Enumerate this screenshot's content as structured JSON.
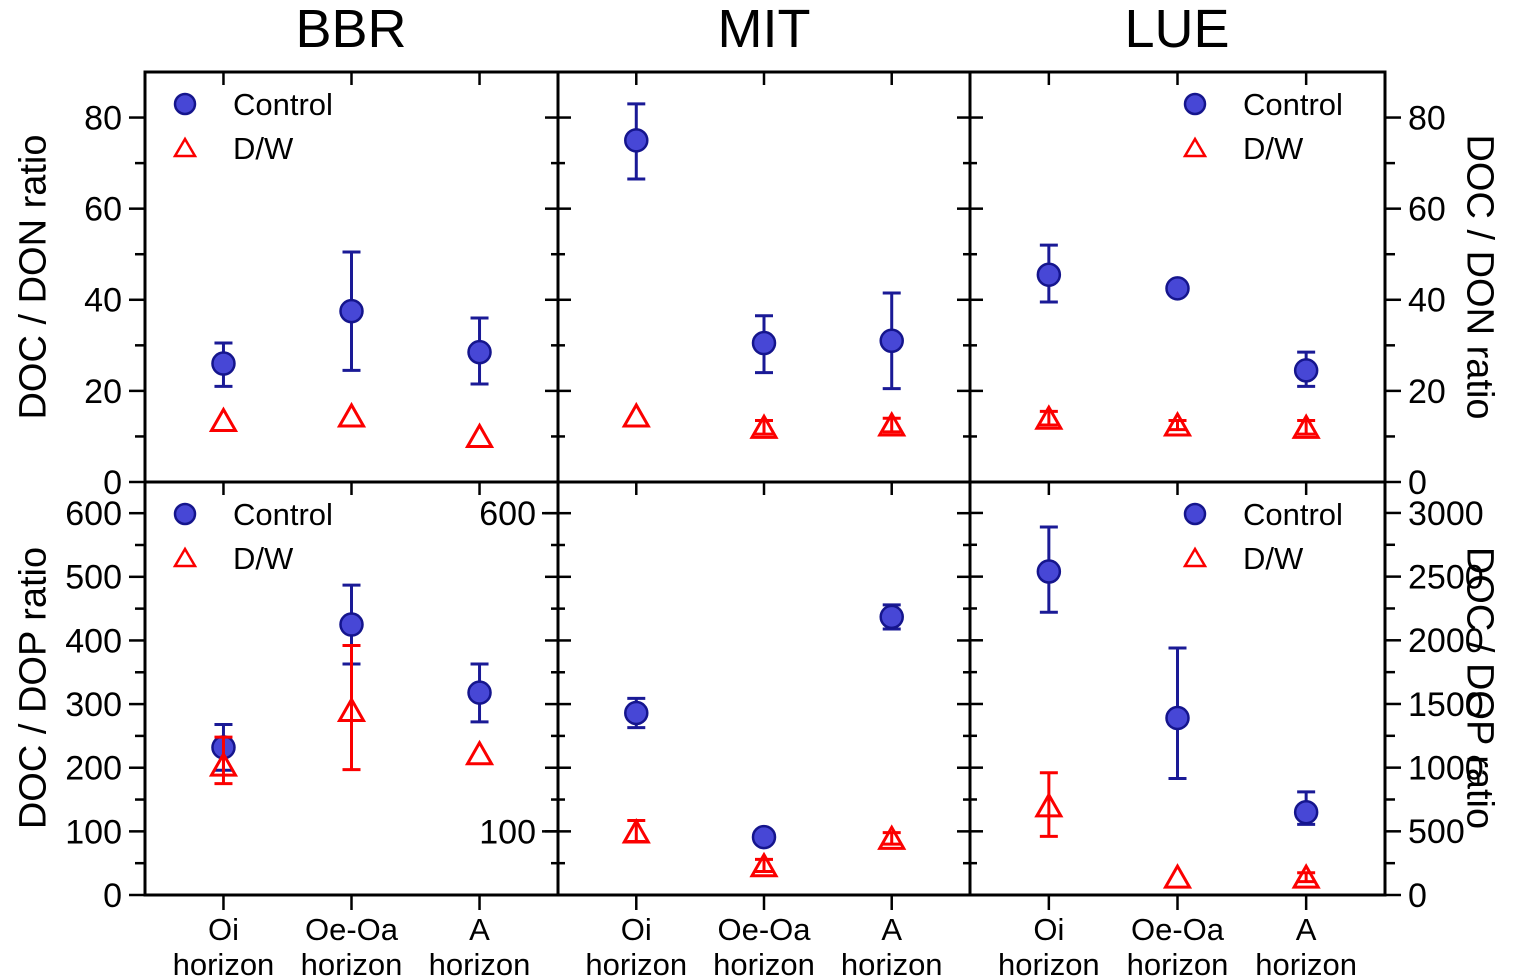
{
  "figure": {
    "panel_titles": [
      "BBR",
      "MIT",
      "LUE"
    ],
    "axis_titles": {
      "left_top": "DOC / DON ratio",
      "left_bottom": "DOC / DOP ratio",
      "right_top": "DOC / DON ratio",
      "right_bottom": "DOC / DOP ratio"
    },
    "legend": {
      "control": "Control",
      "dw": "D/W"
    },
    "categories_lines": [
      [
        "Oi",
        "horizon"
      ],
      [
        "Oe-Oa",
        "horizon"
      ],
      [
        "A",
        "horizon"
      ]
    ]
  },
  "colors": {
    "control_fill": "#4747d6",
    "control_edge": "#15158d",
    "control_error": "#1a1a96",
    "dw_color": "#fb0000",
    "axis": "#000000",
    "text": "#000000",
    "background": "#ffffff"
  },
  "chart_data": [
    {
      "id": "bbr-don",
      "site": "BBR",
      "measure": "DOC / DON ratio",
      "type": "scatter",
      "row": 0,
      "col": 0,
      "categories": [
        "Oi horizon",
        "Oe-Oa horizon",
        "A horizon"
      ],
      "ylim": [
        0,
        90
      ],
      "yticks_major": [
        0,
        20,
        40,
        60,
        80
      ],
      "yticks_minor": [
        10,
        30,
        50,
        70
      ],
      "ylabel_side": "left",
      "legend_pos": "top-left",
      "series": [
        {
          "name": "Control",
          "marker": "circle",
          "values": [
            26,
            37.5,
            28.5
          ],
          "err_upper": [
            30.5,
            50.5,
            36
          ],
          "err_lower": [
            21,
            24.5,
            21.5
          ]
        },
        {
          "name": "D/W",
          "marker": "triangle",
          "values": [
            13.5,
            14.5,
            10
          ],
          "err_upper": [
            null,
            null,
            null
          ],
          "err_lower": [
            null,
            null,
            null
          ]
        }
      ]
    },
    {
      "id": "mit-don",
      "site": "MIT",
      "measure": "DOC / DON ratio",
      "type": "scatter",
      "row": 0,
      "col": 1,
      "categories": [
        "Oi horizon",
        "Oe-Oa horizon",
        "A horizon"
      ],
      "ylim": [
        0,
        90
      ],
      "yticks_major": [
        0,
        20,
        40,
        60,
        80
      ],
      "yticks_minor": [
        10,
        30,
        50,
        70
      ],
      "ylabel_side": "none",
      "legend_pos": null,
      "series": [
        {
          "name": "Control",
          "marker": "circle",
          "values": [
            75,
            30.5,
            31
          ],
          "err_upper": [
            83,
            36.5,
            41.5
          ],
          "err_lower": [
            66.5,
            24,
            20.5
          ]
        },
        {
          "name": "D/W",
          "marker": "triangle",
          "values": [
            14.5,
            12,
            12.5
          ],
          "err_upper": [
            null,
            13.5,
            14
          ],
          "err_lower": [
            null,
            10.5,
            11
          ]
        }
      ]
    },
    {
      "id": "lue-don",
      "site": "LUE",
      "measure": "DOC / DON ratio",
      "type": "scatter",
      "row": 0,
      "col": 2,
      "categories": [
        "Oi horizon",
        "Oe-Oa horizon",
        "A horizon"
      ],
      "ylim": [
        0,
        90
      ],
      "yticks_major": [
        0,
        20,
        40,
        60,
        80
      ],
      "yticks_minor": [
        10,
        30,
        50,
        70
      ],
      "ylabel_side": "right",
      "legend_pos": "top-right",
      "series": [
        {
          "name": "Control",
          "marker": "circle",
          "values": [
            45.5,
            42.5,
            24.5
          ],
          "err_upper": [
            52,
            43.5,
            28.5
          ],
          "err_lower": [
            39.5,
            41.5,
            21
          ]
        },
        {
          "name": "D/W",
          "marker": "triangle",
          "values": [
            14,
            12.5,
            12
          ],
          "err_upper": [
            15.5,
            13.5,
            13.5
          ],
          "err_lower": [
            12.5,
            11.5,
            10.5
          ]
        }
      ]
    },
    {
      "id": "bbr-dop",
      "site": "BBR",
      "measure": "DOC / DOP ratio",
      "type": "scatter",
      "row": 1,
      "col": 0,
      "categories": [
        "Oi horizon",
        "Oe-Oa horizon",
        "A horizon"
      ],
      "ylim": [
        0,
        649
      ],
      "yticks_major": [
        0,
        100,
        200,
        300,
        400,
        500,
        600
      ],
      "yticks_minor": [
        50,
        150,
        250,
        350,
        450,
        550
      ],
      "ylabel_side": "left",
      "legend_pos": "top-left",
      "series": [
        {
          "name": "Control",
          "marker": "circle",
          "values": [
            232,
            425,
            318
          ],
          "err_upper": [
            268,
            487,
            363
          ],
          "err_lower": [
            196,
            363,
            272
          ]
        },
        {
          "name": "D/W",
          "marker": "triangle",
          "values": [
            204,
            290,
            222
          ],
          "err_upper": [
            248,
            392,
            null
          ],
          "err_lower": [
            175,
            197,
            null
          ]
        }
      ]
    },
    {
      "id": "mit-dop",
      "site": "MIT",
      "measure": "DOC / DOP ratio",
      "type": "scatter",
      "row": 1,
      "col": 1,
      "categories": [
        "Oi horizon",
        "Oe-Oa horizon",
        "A horizon"
      ],
      "ylim": [
        0,
        649
      ],
      "yticks_major": [
        0,
        100,
        200,
        300,
        400,
        500,
        600
      ],
      "yticks_minor": [
        50,
        150,
        250,
        350,
        450,
        550
      ],
      "ylabel_side": "none",
      "partial_left_labels": [
        {
          "value": 600,
          "label": "600"
        },
        {
          "value": 100,
          "label": "100"
        }
      ],
      "legend_pos": null,
      "series": [
        {
          "name": "Control",
          "marker": "circle",
          "values": [
            286,
            91,
            437
          ],
          "err_upper": [
            309,
            null,
            456
          ],
          "err_lower": [
            263,
            null,
            418
          ]
        },
        {
          "name": "D/W",
          "marker": "triangle",
          "values": [
            99,
            46,
            89
          ],
          "err_upper": [
            117,
            56,
            98
          ],
          "err_lower": [
            84,
            37,
            80
          ]
        }
      ]
    },
    {
      "id": "lue-dop",
      "site": "LUE",
      "measure": "DOC / DOP ratio",
      "type": "scatter",
      "row": 1,
      "col": 2,
      "categories": [
        "Oi horizon",
        "Oe-Oa horizon",
        "A horizon"
      ],
      "ylim": [
        0,
        3243
      ],
      "yticks_major": [
        0,
        500,
        1000,
        1500,
        2000,
        2500,
        3000
      ],
      "yticks_minor": [
        250,
        750,
        1250,
        1750,
        2250,
        2750
      ],
      "ylabel_side": "right",
      "legend_pos": "top-right",
      "series": [
        {
          "name": "Control",
          "marker": "circle",
          "values": [
            2540,
            1390,
            650
          ],
          "err_upper": [
            2890,
            1940,
            810
          ],
          "err_lower": [
            2220,
            915,
            555
          ]
        },
        {
          "name": "D/W",
          "marker": "triangle",
          "values": [
            700,
            140,
            140
          ],
          "err_upper": [
            960,
            null,
            175
          ],
          "err_lower": [
            460,
            null,
            105
          ]
        }
      ]
    }
  ]
}
